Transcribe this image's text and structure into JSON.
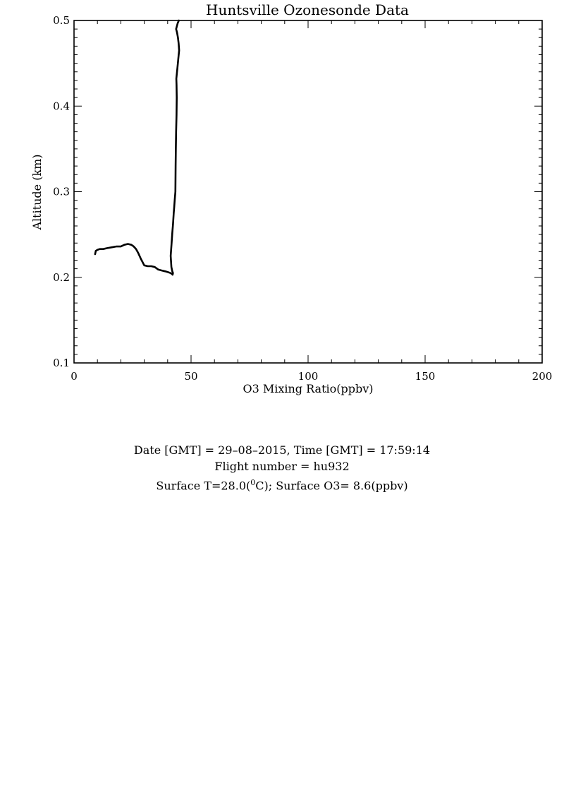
{
  "chart_data": {
    "type": "line",
    "title": "Huntsville Ozonesonde Data",
    "xlabel": "O3 Mixing Ratio(ppbv)",
    "ylabel": "Altitude (km)",
    "xlim": [
      0,
      200
    ],
    "ylim": [
      0.1,
      0.5
    ],
    "x_ticks": [
      0,
      50,
      100,
      150,
      200
    ],
    "x_tick_labels": [
      "0",
      "50",
      "100",
      "150",
      "200"
    ],
    "y_ticks": [
      0.1,
      0.2,
      0.3,
      0.4,
      0.5
    ],
    "y_tick_labels": [
      "0.1",
      "0.2",
      "0.3",
      "0.4",
      "0.5"
    ],
    "grid": false,
    "series": [
      {
        "x": [
          9.0,
          9.3,
          10,
          11,
          12.5,
          14,
          16,
          18,
          20,
          21.5,
          23,
          24.5,
          25.5,
          26.5,
          27.5,
          28.5,
          30,
          31.5,
          33,
          34.5,
          36,
          37.5,
          39,
          40.2,
          41.2,
          41.8,
          42.1,
          42.3,
          42.0,
          41.6,
          41.3,
          41.7,
          42.0,
          42.3,
          42.6,
          42.8,
          43.0,
          43.3,
          43.4,
          43.5,
          43.6,
          43.8,
          43.9,
          43.8,
          43.7,
          44.2,
          44.6,
          44.9,
          44.7,
          44.4,
          44.0,
          43.6,
          44.0,
          44.3,
          44.8,
          44.6
        ],
        "y": [
          0.227,
          0.231,
          0.232,
          0.233,
          0.233,
          0.234,
          0.235,
          0.236,
          0.236,
          0.238,
          0.239,
          0.238,
          0.236,
          0.233,
          0.228,
          0.222,
          0.214,
          0.213,
          0.213,
          0.212,
          0.209,
          0.208,
          0.207,
          0.206,
          0.205,
          0.204,
          0.203,
          0.205,
          0.207,
          0.212,
          0.225,
          0.24,
          0.252,
          0.262,
          0.275,
          0.282,
          0.29,
          0.3,
          0.33,
          0.35,
          0.37,
          0.39,
          0.41,
          0.425,
          0.432,
          0.445,
          0.457,
          0.465,
          0.473,
          0.48,
          0.486,
          0.49,
          0.494,
          0.497,
          0.5,
          0.505
        ]
      }
    ]
  },
  "caption": {
    "line1": "Date [GMT] = 29–08–2015,  Time [GMT] = 17:59:14",
    "line2": "Flight number = hu932",
    "line3_a": "Surface T=28.0(",
    "line3_sup": "0",
    "line3_b": "C); Surface O3= 8.6(ppbv)"
  }
}
